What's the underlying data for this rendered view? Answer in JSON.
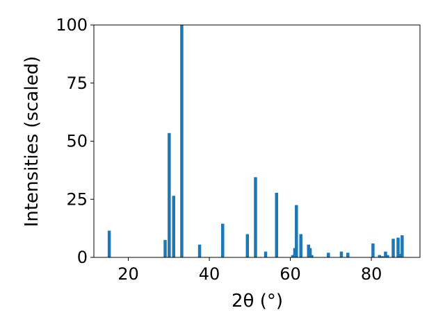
{
  "chart_data": {
    "type": "bar",
    "title": "",
    "xlabel": "2θ (°)",
    "ylabel": "Intensities (scaled)",
    "xlim": [
      11.5,
      92.0
    ],
    "ylim": [
      0,
      100
    ],
    "x_ticks": [
      20,
      40,
      60,
      80
    ],
    "y_ticks": [
      0,
      25,
      50,
      75,
      100
    ],
    "grid": false,
    "legend": "none",
    "bar_color": "#1f77b4",
    "series": [
      {
        "x": [
          15.3,
          29.1,
          30.1,
          31.2,
          33.2,
          37.6,
          43.3,
          49.4,
          51.4,
          53.9,
          56.6,
          60.6,
          61.1,
          61.5,
          62.6,
          64.5,
          64.9,
          65.3,
          69.4,
          72.6,
          74.2,
          80.4,
          82.0,
          82.7,
          83.5,
          84.0,
          85.4,
          86.6,
          87.2,
          87.6
        ],
        "values": [
          11.5,
          7.5,
          53.5,
          26.5,
          100,
          5.5,
          14.5,
          10,
          34.5,
          2.5,
          27.8,
          1.0,
          4.0,
          22.5,
          10.0,
          5.5,
          4.0,
          1.0,
          2.0,
          2.5,
          2.0,
          6.0,
          1.0,
          0.5,
          2.5,
          1.0,
          8.0,
          8.5,
          1.5,
          9.5
        ]
      }
    ]
  }
}
